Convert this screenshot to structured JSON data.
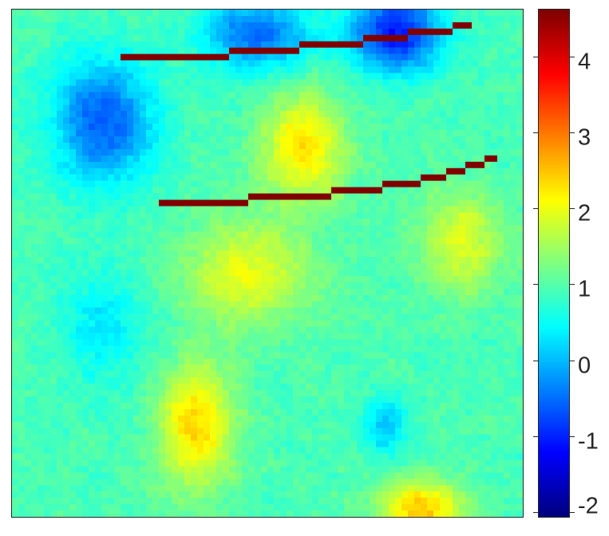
{
  "chart_data": {
    "type": "heatmap",
    "title": "",
    "xlabel": "",
    "ylabel": "",
    "axes_ticks_shown": false,
    "grid_size": [
      80,
      80
    ],
    "colormap": "jet",
    "clim": [
      -2,
      4.7
    ],
    "colorbar": {
      "position": "right",
      "ticks": [
        4,
        3,
        2,
        1,
        0,
        -1,
        -2
      ],
      "tick_labels": [
        "4",
        "3",
        "2",
        "1",
        "0",
        "-1",
        "-2"
      ]
    },
    "value_summary": {
      "background_level": 1.0,
      "low_regions": [
        {
          "area": "top-left",
          "value": -0.6
        },
        {
          "area": "top-center",
          "value": -0.5
        },
        {
          "area": "top-right",
          "value": -1.1
        },
        {
          "area": "middle-left",
          "value": 0.4
        },
        {
          "area": "lower-center-right",
          "value": 0.1
        }
      ],
      "high_regions": [
        {
          "area": "upper-center",
          "value": 2.4
        },
        {
          "area": "center",
          "value": 2.1
        },
        {
          "area": "lower-left-center",
          "value": 2.5
        },
        {
          "area": "bottom-right",
          "value": 2.6
        },
        {
          "area": "right-center",
          "value": 2.0
        }
      ]
    },
    "overlay_lines": [
      {
        "color": "#800000",
        "value": 4.7,
        "cols": [
          17,
          34,
          45,
          55,
          62,
          69
        ],
        "rows": [
          7,
          6,
          5,
          4,
          3,
          2
        ],
        "end_col": 72
      },
      {
        "color": "#800000",
        "value": 4.7,
        "cols": [
          23,
          37,
          50,
          58,
          64,
          68,
          71,
          74
        ],
        "rows": [
          30,
          29,
          28,
          27,
          26,
          25,
          24,
          23
        ],
        "end_col": 76
      }
    ]
  }
}
